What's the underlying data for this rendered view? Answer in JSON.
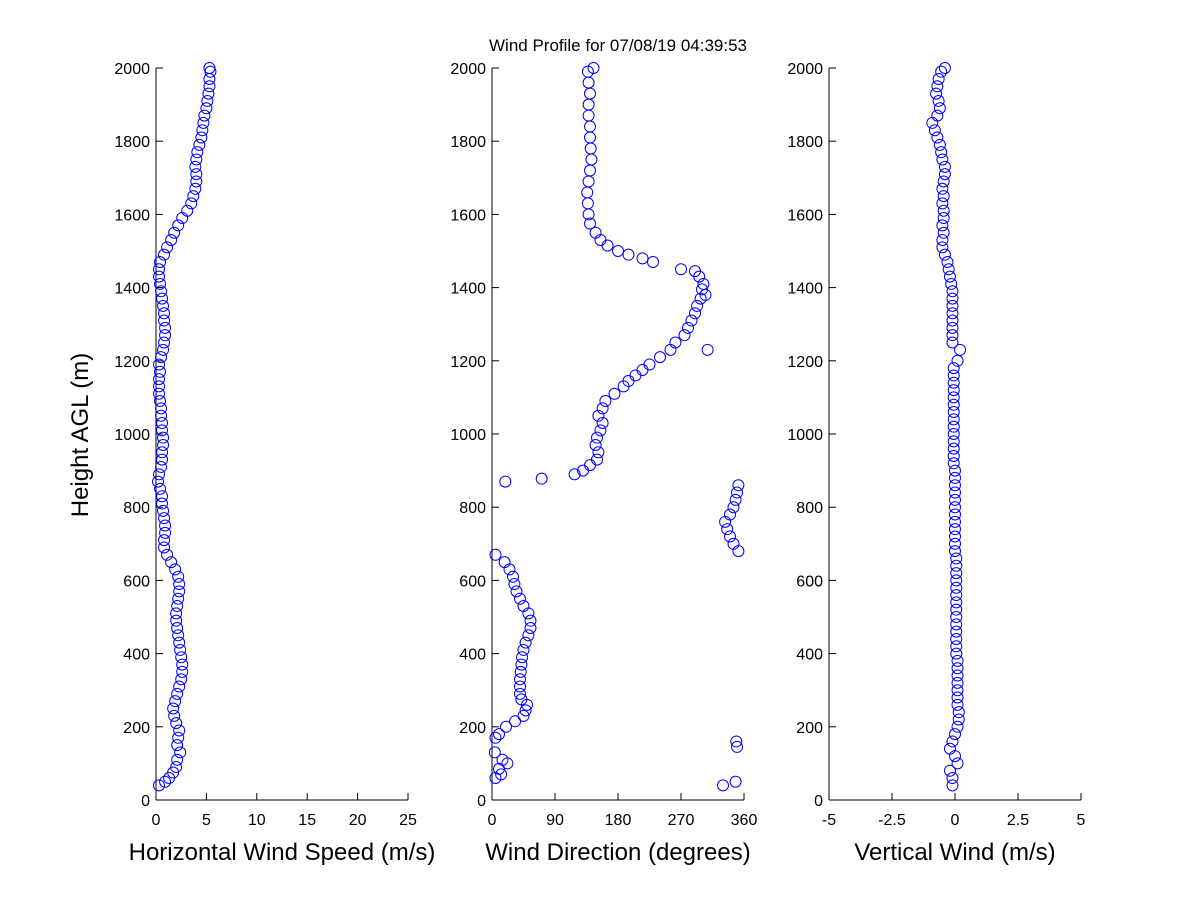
{
  "title": "Wind Profile for  07/08/19 04:39:53",
  "shared": {
    "ylabel": "Height AGL (m)",
    "ylim": [
      0,
      2000
    ],
    "yticks": [
      0,
      200,
      400,
      600,
      800,
      1000,
      1200,
      1400,
      1600,
      1800,
      2000
    ],
    "marker_color": "#0000ff"
  },
  "chart_data": [
    {
      "type": "scatter",
      "xlabel": "Horizontal Wind Speed (m/s)",
      "xlim": [
        0,
        25
      ],
      "xticks": [
        0,
        5,
        10,
        15,
        20,
        25
      ],
      "xtick_labels": [
        "0",
        "5",
        "10",
        "15",
        "20",
        "25"
      ],
      "ylabel": "Height AGL (m)",
      "profile": [
        [
          0.3,
          40
        ],
        [
          0.9,
          50
        ],
        [
          1.3,
          60
        ],
        [
          1.7,
          75
        ],
        [
          2.0,
          90
        ],
        [
          2.1,
          110
        ],
        [
          2.4,
          130
        ],
        [
          2.1,
          150
        ],
        [
          2.2,
          170
        ],
        [
          2.3,
          190
        ],
        [
          2.0,
          210
        ],
        [
          1.8,
          230
        ],
        [
          1.7,
          250
        ],
        [
          1.9,
          270
        ],
        [
          2.1,
          290
        ],
        [
          2.3,
          310
        ],
        [
          2.5,
          330
        ],
        [
          2.6,
          350
        ],
        [
          2.6,
          370
        ],
        [
          2.5,
          390
        ],
        [
          2.4,
          410
        ],
        [
          2.3,
          430
        ],
        [
          2.2,
          450
        ],
        [
          2.1,
          470
        ],
        [
          2.0,
          490
        ],
        [
          2.0,
          510
        ],
        [
          2.1,
          530
        ],
        [
          2.2,
          550
        ],
        [
          2.3,
          570
        ],
        [
          2.3,
          590
        ],
        [
          2.2,
          610
        ],
        [
          1.9,
          630
        ],
        [
          1.5,
          650
        ],
        [
          1.1,
          670
        ],
        [
          0.8,
          690
        ],
        [
          0.8,
          710
        ],
        [
          0.9,
          730
        ],
        [
          0.9,
          750
        ],
        [
          0.8,
          770
        ],
        [
          0.7,
          790
        ],
        [
          0.6,
          810
        ],
        [
          0.6,
          830
        ],
        [
          0.4,
          850
        ],
        [
          0.2,
          870
        ],
        [
          0.3,
          890
        ],
        [
          0.5,
          910
        ],
        [
          0.6,
          930
        ],
        [
          0.6,
          950
        ],
        [
          0.7,
          970
        ],
        [
          0.7,
          990
        ],
        [
          0.6,
          1010
        ],
        [
          0.6,
          1030
        ],
        [
          0.5,
          1050
        ],
        [
          0.5,
          1070
        ],
        [
          0.4,
          1090
        ],
        [
          0.3,
          1110
        ],
        [
          0.3,
          1130
        ],
        [
          0.3,
          1150
        ],
        [
          0.4,
          1170
        ],
        [
          0.3,
          1190
        ],
        [
          0.5,
          1210
        ],
        [
          0.7,
          1230
        ],
        [
          0.8,
          1250
        ],
        [
          0.9,
          1270
        ],
        [
          0.9,
          1290
        ],
        [
          0.8,
          1310
        ],
        [
          0.8,
          1330
        ],
        [
          0.7,
          1350
        ],
        [
          0.6,
          1370
        ],
        [
          0.5,
          1390
        ],
        [
          0.4,
          1410
        ],
        [
          0.3,
          1430
        ],
        [
          0.3,
          1450
        ],
        [
          0.4,
          1470
        ],
        [
          0.8,
          1490
        ],
        [
          1.1,
          1510
        ],
        [
          1.5,
          1530
        ],
        [
          1.8,
          1550
        ],
        [
          2.2,
          1570
        ],
        [
          2.6,
          1590
        ],
        [
          3.1,
          1610
        ],
        [
          3.5,
          1630
        ],
        [
          3.7,
          1650
        ],
        [
          3.9,
          1670
        ],
        [
          4.0,
          1690
        ],
        [
          4.0,
          1710
        ],
        [
          3.9,
          1730
        ],
        [
          4.0,
          1750
        ],
        [
          4.1,
          1770
        ],
        [
          4.3,
          1790
        ],
        [
          4.5,
          1810
        ],
        [
          4.6,
          1830
        ],
        [
          4.7,
          1850
        ],
        [
          4.8,
          1870
        ],
        [
          5.0,
          1890
        ],
        [
          5.1,
          1910
        ],
        [
          5.2,
          1930
        ],
        [
          5.3,
          1950
        ],
        [
          5.3,
          1970
        ],
        [
          5.4,
          1990
        ],
        [
          5.3,
          2000
        ]
      ]
    },
    {
      "type": "scatter",
      "xlabel": "Wind Direction (degrees)",
      "xlim": [
        0,
        360
      ],
      "xticks": [
        0,
        90,
        180,
        270,
        360
      ],
      "xtick_labels": [
        "0",
        "90",
        "180",
        "270",
        "360"
      ],
      "ylabel": "",
      "profile": [
        [
          330,
          40
        ],
        [
          348,
          50
        ],
        [
          5,
          60
        ],
        [
          13,
          70
        ],
        [
          10,
          85
        ],
        [
          22,
          100
        ],
        [
          15,
          110
        ],
        [
          4,
          130
        ],
        [
          350,
          145
        ],
        [
          349,
          160
        ],
        [
          5,
          170
        ],
        [
          10,
          180
        ],
        [
          20,
          200
        ],
        [
          33,
          215
        ],
        [
          45,
          230
        ],
        [
          48,
          245
        ],
        [
          50,
          260
        ],
        [
          42,
          275
        ],
        [
          40,
          290
        ],
        [
          40,
          310
        ],
        [
          40,
          330
        ],
        [
          41,
          350
        ],
        [
          42,
          370
        ],
        [
          43,
          390
        ],
        [
          45,
          410
        ],
        [
          48,
          430
        ],
        [
          52,
          450
        ],
        [
          55,
          470
        ],
        [
          55,
          490
        ],
        [
          52,
          510
        ],
        [
          45,
          530
        ],
        [
          40,
          550
        ],
        [
          35,
          570
        ],
        [
          32,
          590
        ],
        [
          30,
          610
        ],
        [
          25,
          630
        ],
        [
          18,
          650
        ],
        [
          5,
          670
        ],
        [
          352,
          680
        ],
        [
          345,
          700
        ],
        [
          340,
          720
        ],
        [
          336,
          740
        ],
        [
          333,
          760
        ],
        [
          340,
          780
        ],
        [
          345,
          800
        ],
        [
          348,
          820
        ],
        [
          350,
          840
        ],
        [
          352,
          860
        ],
        [
          19,
          870
        ],
        [
          71,
          878
        ],
        [
          118,
          890
        ],
        [
          130,
          900
        ],
        [
          140,
          915
        ],
        [
          150,
          930
        ],
        [
          152,
          950
        ],
        [
          148,
          970
        ],
        [
          150,
          990
        ],
        [
          155,
          1010
        ],
        [
          158,
          1030
        ],
        [
          152,
          1050
        ],
        [
          158,
          1070
        ],
        [
          162,
          1090
        ],
        [
          175,
          1110
        ],
        [
          188,
          1130
        ],
        [
          195,
          1145
        ],
        [
          205,
          1160
        ],
        [
          215,
          1175
        ],
        [
          225,
          1190
        ],
        [
          240,
          1210
        ],
        [
          255,
          1230
        ],
        [
          262,
          1250
        ],
        [
          275,
          1270
        ],
        [
          280,
          1290
        ],
        [
          285,
          1310
        ],
        [
          290,
          1330
        ],
        [
          293,
          1350
        ],
        [
          298,
          1370
        ],
        [
          305,
          1380
        ],
        [
          300,
          1395
        ],
        [
          302,
          1410
        ],
        [
          296,
          1430
        ],
        [
          290,
          1445
        ],
        [
          270,
          1450
        ],
        [
          230,
          1470
        ],
        [
          215,
          1480
        ],
        [
          195,
          1490
        ],
        [
          180,
          1500
        ],
        [
          165,
          1515
        ],
        [
          155,
          1530
        ],
        [
          148,
          1550
        ],
        [
          140,
          1575
        ],
        [
          138,
          1600
        ],
        [
          137,
          1630
        ],
        [
          136,
          1660
        ],
        [
          138,
          1690
        ],
        [
          140,
          1720
        ],
        [
          142,
          1750
        ],
        [
          141,
          1780
        ],
        [
          140,
          1810
        ],
        [
          140,
          1840
        ],
        [
          138,
          1870
        ],
        [
          138,
          1900
        ],
        [
          140,
          1930
        ],
        [
          138,
          1960
        ],
        [
          137,
          1990
        ],
        [
          145,
          2000
        ],
        [
          308,
          1230
        ]
      ]
    },
    {
      "type": "scatter",
      "xlabel": "Vertical Wind (m/s)",
      "xlim": [
        -5,
        5
      ],
      "xticks": [
        -5,
        -2.5,
        0,
        2.5,
        5
      ],
      "xtick_labels": [
        "-5",
        "-2.5",
        "0",
        "2.5",
        "5"
      ],
      "ylabel": "",
      "profile": [
        [
          -0.1,
          40
        ],
        [
          -0.1,
          60
        ],
        [
          -0.2,
          80
        ],
        [
          0.1,
          100
        ],
        [
          0.0,
          120
        ],
        [
          -0.2,
          140
        ],
        [
          -0.1,
          160
        ],
        [
          0.0,
          180
        ],
        [
          0.1,
          200
        ],
        [
          0.15,
          220
        ],
        [
          0.15,
          240
        ],
        [
          0.1,
          260
        ],
        [
          0.1,
          280
        ],
        [
          0.1,
          300
        ],
        [
          0.1,
          320
        ],
        [
          0.1,
          340
        ],
        [
          0.1,
          360
        ],
        [
          0.1,
          380
        ],
        [
          0.05,
          400
        ],
        [
          0.05,
          420
        ],
        [
          0.05,
          440
        ],
        [
          0.05,
          460
        ],
        [
          0.05,
          480
        ],
        [
          0.05,
          500
        ],
        [
          0.05,
          520
        ],
        [
          0.05,
          540
        ],
        [
          0.05,
          560
        ],
        [
          0.05,
          580
        ],
        [
          0.05,
          600
        ],
        [
          0.05,
          620
        ],
        [
          0.05,
          640
        ],
        [
          0.05,
          660
        ],
        [
          0.0,
          680
        ],
        [
          0.0,
          700
        ],
        [
          0.0,
          720
        ],
        [
          0.0,
          740
        ],
        [
          0.0,
          760
        ],
        [
          0.0,
          780
        ],
        [
          0.0,
          800
        ],
        [
          0.0,
          820
        ],
        [
          0.0,
          840
        ],
        [
          0.0,
          860
        ],
        [
          0.0,
          880
        ],
        [
          0.0,
          900
        ],
        [
          -0.05,
          920
        ],
        [
          -0.05,
          940
        ],
        [
          -0.05,
          960
        ],
        [
          -0.05,
          980
        ],
        [
          -0.05,
          1000
        ],
        [
          -0.05,
          1020
        ],
        [
          -0.05,
          1040
        ],
        [
          -0.05,
          1060
        ],
        [
          -0.05,
          1080
        ],
        [
          -0.05,
          1100
        ],
        [
          -0.05,
          1120
        ],
        [
          -0.05,
          1140
        ],
        [
          -0.05,
          1160
        ],
        [
          -0.05,
          1180
        ],
        [
          0.1,
          1200
        ],
        [
          0.2,
          1230
        ],
        [
          -0.1,
          1250
        ],
        [
          -0.1,
          1270
        ],
        [
          -0.1,
          1290
        ],
        [
          -0.1,
          1310
        ],
        [
          -0.1,
          1330
        ],
        [
          -0.1,
          1350
        ],
        [
          -0.1,
          1370
        ],
        [
          -0.1,
          1390
        ],
        [
          -0.15,
          1410
        ],
        [
          -0.2,
          1430
        ],
        [
          -0.25,
          1450
        ],
        [
          -0.3,
          1470
        ],
        [
          -0.4,
          1490
        ],
        [
          -0.5,
          1510
        ],
        [
          -0.5,
          1530
        ],
        [
          -0.45,
          1550
        ],
        [
          -0.5,
          1570
        ],
        [
          -0.45,
          1590
        ],
        [
          -0.45,
          1610
        ],
        [
          -0.5,
          1630
        ],
        [
          -0.45,
          1650
        ],
        [
          -0.5,
          1670
        ],
        [
          -0.45,
          1690
        ],
        [
          -0.4,
          1710
        ],
        [
          -0.4,
          1730
        ],
        [
          -0.5,
          1750
        ],
        [
          -0.55,
          1770
        ],
        [
          -0.6,
          1790
        ],
        [
          -0.7,
          1810
        ],
        [
          -0.8,
          1830
        ],
        [
          -0.9,
          1850
        ],
        [
          -0.7,
          1870
        ],
        [
          -0.6,
          1890
        ],
        [
          -0.65,
          1910
        ],
        [
          -0.75,
          1930
        ],
        [
          -0.7,
          1950
        ],
        [
          -0.65,
          1970
        ],
        [
          -0.55,
          1990
        ],
        [
          -0.4,
          2000
        ]
      ]
    }
  ]
}
